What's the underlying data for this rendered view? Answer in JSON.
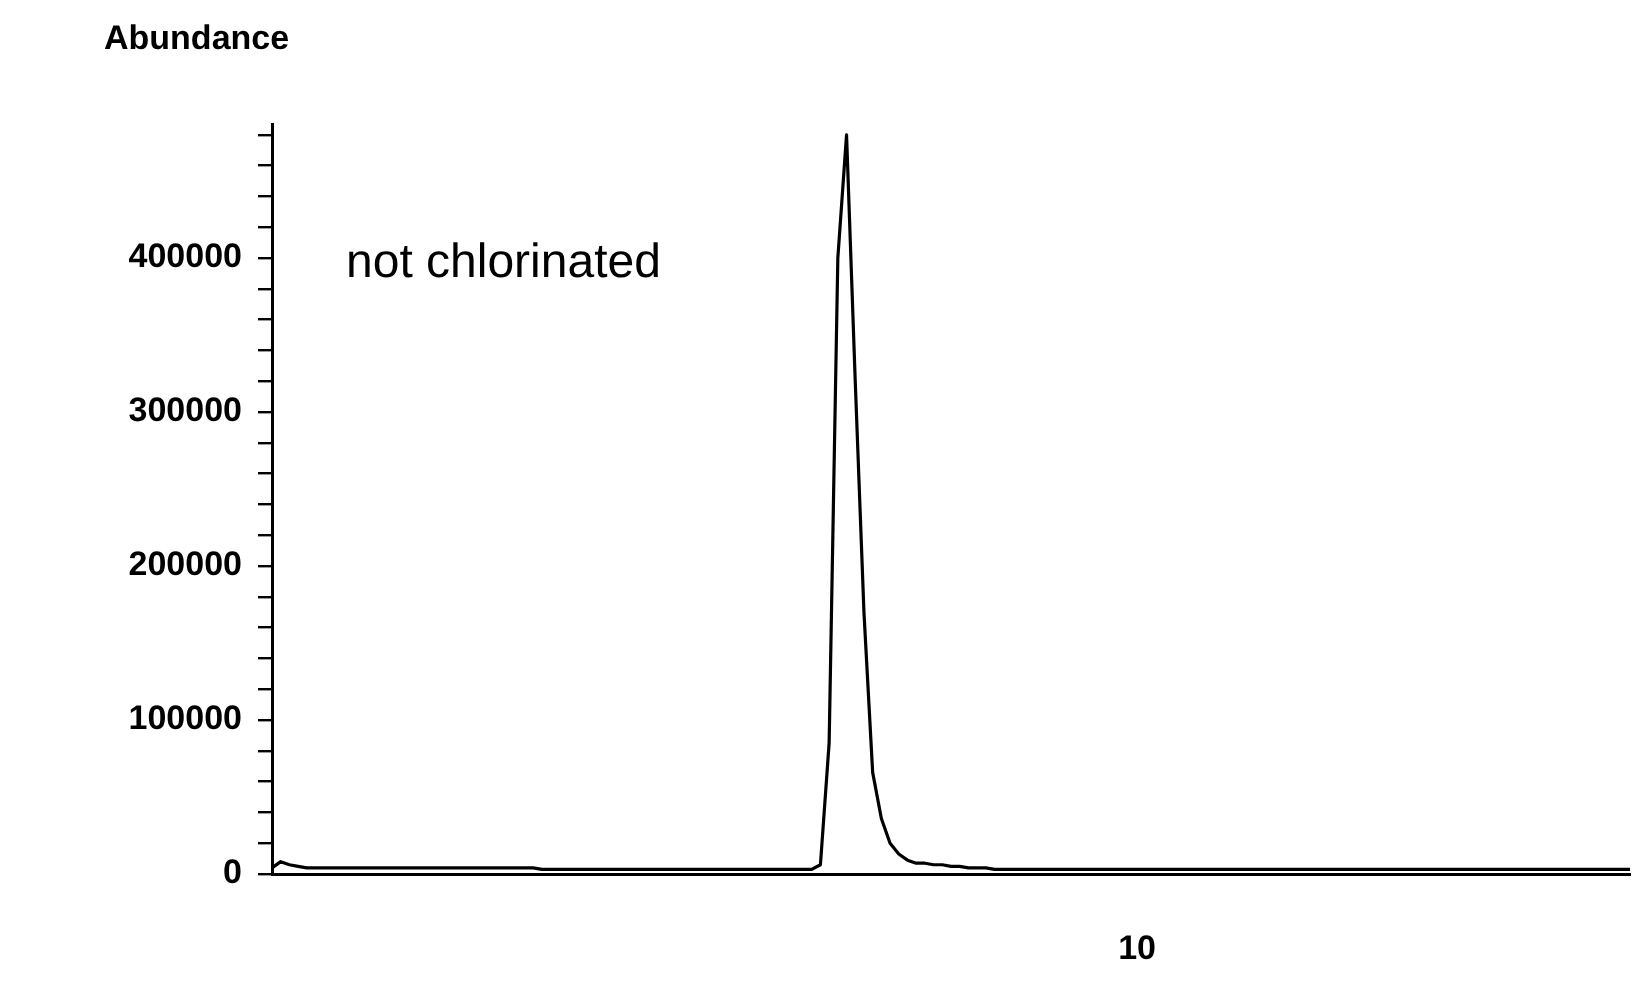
{
  "chart_data": {
    "type": "line",
    "ylabel": "Abundance",
    "annotations": [
      "not chlorinated",
      "10"
    ],
    "categories": [
      null,
      null,
      null,
      null,
      null,
      null,
      null,
      null,
      null,
      null,
      null,
      null,
      null,
      null,
      null,
      null,
      null,
      null,
      null,
      null,
      null,
      null,
      null,
      null,
      null,
      null,
      null,
      null,
      null,
      null,
      null,
      null,
      null,
      null,
      null,
      null,
      null,
      null,
      null,
      null,
      null,
      null,
      null,
      null,
      null,
      null,
      null,
      null,
      null,
      null,
      null,
      null,
      null,
      null,
      null,
      null,
      null,
      null,
      null,
      null,
      null,
      null,
      null,
      null,
      null,
      null,
      null,
      null,
      null,
      null,
      null,
      null,
      null,
      null,
      null,
      null,
      null,
      null,
      null,
      null,
      null,
      null,
      null,
      null,
      null,
      null,
      null,
      null,
      null,
      null,
      null,
      null,
      null,
      null,
      null,
      null,
      null,
      null,
      null,
      null,
      null,
      null,
      null,
      null,
      null,
      null,
      null,
      null,
      null,
      null,
      null,
      null,
      null,
      null,
      null,
      null,
      null,
      null,
      null,
      null,
      null,
      null,
      null,
      null,
      null,
      null,
      null,
      null,
      null,
      null,
      null,
      null,
      null,
      null,
      null,
      null,
      null,
      null,
      null,
      null,
      null,
      null,
      null,
      null,
      null,
      null,
      null,
      null,
      null,
      null,
      null,
      null,
      null,
      null,
      null,
      null,
      null
    ],
    "ylim": [
      0,
      487000
    ],
    "yticks": [
      0,
      {
        "value": 20000,
        "label": null
      },
      {
        "value": 40000,
        "label": null
      },
      {
        "value": 60000,
        "label": null
      },
      {
        "value": 80000,
        "label": null
      },
      100000,
      {
        "value": 120000,
        "label": null
      },
      {
        "value": 140000,
        "label": null
      },
      {
        "value": 160000,
        "label": null
      },
      {
        "value": 180000,
        "label": null
      },
      200000,
      {
        "value": 220000,
        "label": null
      },
      {
        "value": 240000,
        "label": null
      },
      {
        "value": 260000,
        "label": null
      },
      {
        "value": 280000,
        "label": null
      },
      300000,
      {
        "value": 320000,
        "label": null
      },
      {
        "value": 340000,
        "label": null
      },
      {
        "value": 360000,
        "label": null
      },
      {
        "value": 380000,
        "label": null
      },
      400000,
      {
        "value": 420000,
        "label": null
      },
      {
        "value": 440000,
        "label": null
      },
      {
        "value": 460000,
        "label": null
      },
      {
        "value": 480000,
        "label": null
      }
    ],
    "marker": "none",
    "series": [
      {
        "color": "#000000",
        "values": [
          4000,
          8000,
          6000,
          5000,
          4000,
          4000,
          4000,
          4000,
          4000,
          4000,
          4000,
          4000,
          4000,
          4000,
          4000,
          4000,
          4000,
          4000,
          4000,
          4000,
          4000,
          4000,
          4000,
          4000,
          4000,
          4000,
          4000,
          4000,
          4000,
          4000,
          4000,
          3000,
          3000,
          3000,
          3000,
          3000,
          3000,
          3000,
          3000,
          3000,
          3000,
          3000,
          3000,
          3000,
          3000,
          3000,
          3000,
          3000,
          3000,
          3000,
          3000,
          3000,
          3000,
          3000,
          3000,
          3000,
          3000,
          3000,
          3000,
          3000,
          3000,
          3000,
          3000,
          6000,
          85000,
          400000,
          480000,
          320000,
          170000,
          66000,
          36000,
          20000,
          13000,
          9000,
          7000,
          7000,
          6000,
          6000,
          5000,
          5000,
          4000,
          4000,
          4000,
          3000,
          3000,
          3000,
          3000,
          3000,
          3000,
          3000,
          3000,
          3000,
          3000,
          3000,
          3000,
          3000,
          3000,
          3000,
          3000,
          3000,
          3000,
          3000,
          3000,
          3000,
          3000,
          3000,
          3000,
          3000,
          3000,
          3000,
          3000,
          3000,
          3000,
          3000,
          3000,
          3000,
          3000,
          3000,
          3000,
          3000,
          3000,
          3000,
          3000,
          3000,
          3000,
          3000,
          3000,
          3000,
          3000,
          3000,
          3000,
          3000,
          3000,
          3000,
          3000,
          3000,
          3000,
          3000,
          3000,
          3000,
          3000,
          3000,
          3000,
          3000,
          3000,
          3000,
          3000,
          3000,
          3000,
          3000,
          3000,
          3000,
          3000,
          3000,
          3000,
          3000,
          3000
        ]
      }
    ]
  }
}
